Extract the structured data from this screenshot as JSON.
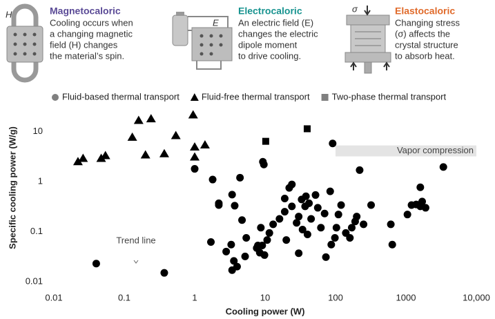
{
  "header": {
    "panels": [
      {
        "title": "Magnetocaloric",
        "color": "#5a4a96",
        "icon_label": "H",
        "lines": [
          "Cooling occurs when",
          "a changing magnetic",
          "field (H) changes",
          "the material’s spin."
        ]
      },
      {
        "title": "Electrocaloric",
        "color": "#17938f",
        "icon_label": "E",
        "lines": [
          "An electric field (E)",
          "changes the electric",
          "dipole moment",
          "to drive cooling."
        ]
      },
      {
        "title": "Elastocaloric",
        "color": "#e06a2a",
        "icon_label": "σ",
        "lines": [
          "Changing stress",
          "(σ) affects the",
          "crystal structure",
          "to absorb heat."
        ]
      }
    ]
  },
  "chart_data": {
    "type": "scatter",
    "x_label": "Cooling power (W)",
    "y_label": "Specific cooling power (W/g)",
    "xlog": true,
    "ylog": true,
    "xlim": [
      0.01,
      10000
    ],
    "ylim": [
      0.006,
      40
    ],
    "xticks": [
      0.01,
      0.1,
      1,
      10,
      100,
      1000,
      {
        "value": 10000,
        "label": "10,000"
      }
    ],
    "yticks": [
      0.01,
      0.1,
      1,
      10
    ],
    "grid": false,
    "legend": "top",
    "series": [
      {
        "name": "Fluid-based thermal transport",
        "marker": "circle",
        "color": "#000000",
        "legend_color": "#808080",
        "x": [
          0.04,
          0.37,
          1.0,
          1.8,
          2.2,
          2.2,
          1.7,
          2.8,
          3.4,
          3.6,
          4.0,
          3.3,
          4.4,
          3.4,
          3.7,
          4.7,
          5.2,
          5.4,
          7.6,
          7.9,
          8.4,
          8.7,
          9.1,
          9.8,
          9.6,
          9.3,
          10.7,
          11.5,
          13,
          16,
          19,
          19,
          20,
          22,
          24,
          24,
          28,
          30,
          30,
          33,
          34,
          37,
          38,
          42,
          40,
          45,
          52,
          56,
          62,
          70,
          73,
          84,
          87,
          91,
          98,
          103,
          110,
          120,
          140,
          160,
          170,
          190,
          200,
          220,
          250,
          320,
          610,
          640,
          1050,
          1200,
          1400,
          1600,
          1600,
          1700,
          1900,
          3400
        ],
        "values": [
          0.023,
          0.015,
          1.8,
          1.1,
          0.37,
          0.34,
          0.062,
          0.04,
          0.017,
          0.026,
          0.02,
          0.055,
          1.2,
          0.55,
          0.33,
          0.17,
          0.032,
          0.075,
          0.047,
          0.053,
          0.038,
          0.12,
          0.053,
          0.034,
          2.2,
          2.5,
          0.068,
          0.094,
          0.14,
          0.18,
          0.25,
          0.46,
          0.068,
          0.75,
          0.88,
          0.32,
          0.15,
          0.2,
          0.037,
          0.44,
          0.11,
          0.32,
          0.51,
          0.37,
          0.088,
          0.18,
          0.54,
          0.3,
          0.12,
          0.23,
          0.031,
          0.64,
          0.055,
          5.8,
          0.075,
          0.12,
          0.22,
          0.34,
          0.094,
          0.075,
          0.12,
          0.16,
          0.2,
          1.7,
          0.14,
          0.34,
          0.14,
          0.055,
          0.22,
          0.34,
          0.35,
          0.32,
          0.77,
          0.4,
          0.3,
          1.96
        ]
      },
      {
        "name": "Fluid-free thermal transport",
        "marker": "triangle",
        "color": "#000000",
        "legend_color": "#000000",
        "x": [
          0.022,
          0.026,
          0.047,
          0.054,
          0.13,
          0.16,
          0.24,
          0.2,
          0.37,
          0.54,
          0.95,
          1.0,
          1.0,
          1.4
        ],
        "values": [
          2.5,
          2.9,
          2.9,
          3.3,
          7.7,
          16.7,
          18,
          3.4,
          3.6,
          8.3,
          21.5,
          4.9,
          3.1,
          5.4
        ]
      },
      {
        "name": "Two-phase thermal transport",
        "marker": "square",
        "color": "#000000",
        "legend_color": "#808080",
        "x": [
          10.2,
          39.6
        ],
        "values": [
          6.4,
          11.4
        ]
      }
    ],
    "regions": [
      {
        "label": "Vapor compression",
        "x": [
          100,
          10000
        ],
        "y": [
          3.2,
          5.3
        ],
        "color": "#e4e4e4"
      }
    ],
    "annotations": [
      "Trend line"
    ]
  }
}
